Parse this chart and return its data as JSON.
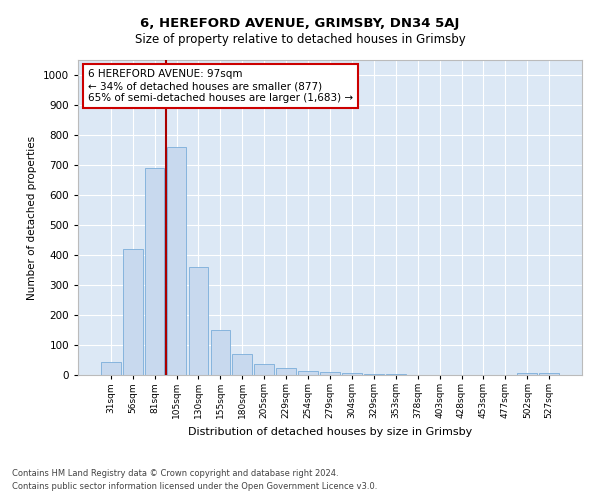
{
  "title1": "6, HEREFORD AVENUE, GRIMSBY, DN34 5AJ",
  "title2": "Size of property relative to detached houses in Grimsby",
  "xlabel": "Distribution of detached houses by size in Grimsby",
  "ylabel": "Number of detached properties",
  "categories": [
    "31sqm",
    "56sqm",
    "81sqm",
    "105sqm",
    "130sqm",
    "155sqm",
    "180sqm",
    "205sqm",
    "229sqm",
    "254sqm",
    "279sqm",
    "304sqm",
    "329sqm",
    "353sqm",
    "378sqm",
    "403sqm",
    "428sqm",
    "453sqm",
    "477sqm",
    "502sqm",
    "527sqm"
  ],
  "values": [
    45,
    420,
    690,
    760,
    360,
    150,
    70,
    38,
    25,
    15,
    10,
    7,
    5,
    2,
    1,
    0,
    0,
    0,
    0,
    8,
    8
  ],
  "bar_color": "#c8d9ee",
  "bar_edge_color": "#7aadda",
  "annotation_box_text": "6 HEREFORD AVENUE: 97sqm\n← 34% of detached houses are smaller (877)\n65% of semi-detached houses are larger (1,683) →",
  "annotation_box_color": "#ffffff",
  "annotation_box_edge_color": "#cc0000",
  "vline_color": "#aa0000",
  "vline_x": 2.5,
  "ylim": [
    0,
    1050
  ],
  "yticks": [
    0,
    100,
    200,
    300,
    400,
    500,
    600,
    700,
    800,
    900,
    1000
  ],
  "plot_bg_color": "#dce8f5",
  "footer1": "Contains HM Land Registry data © Crown copyright and database right 2024.",
  "footer2": "Contains public sector information licensed under the Open Government Licence v3.0."
}
